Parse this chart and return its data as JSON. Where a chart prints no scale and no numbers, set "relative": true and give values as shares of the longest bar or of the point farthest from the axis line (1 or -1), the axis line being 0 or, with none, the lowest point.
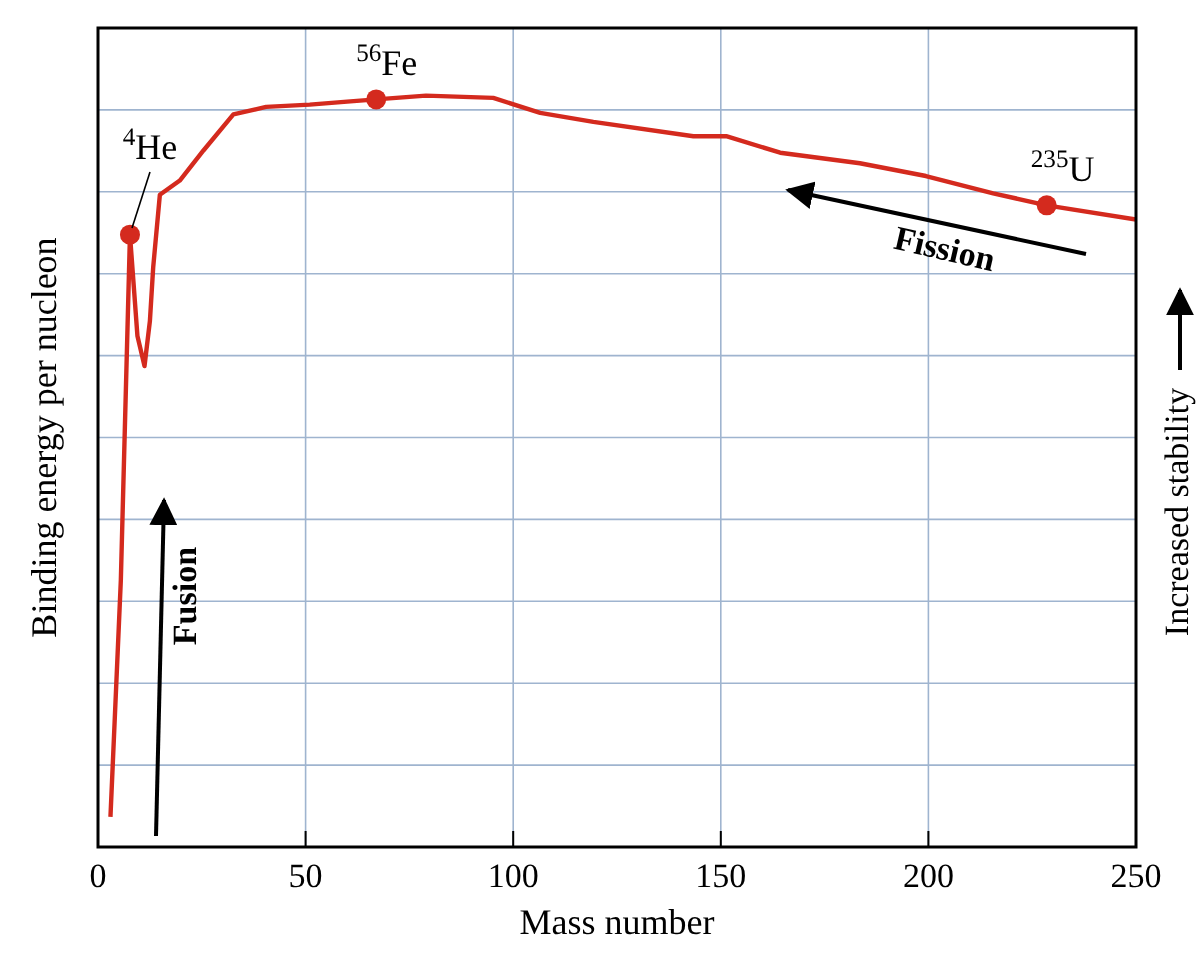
{
  "chart_data": {
    "type": "line",
    "relative": true,
    "xlabel": "Mass number",
    "ylabel": "Binding energy per nucleon",
    "xlim": [
      0,
      250
    ],
    "xticks": [
      0,
      50,
      100,
      150,
      200,
      250
    ],
    "grid": true,
    "marker": "none",
    "line_style": "solid",
    "x": [
      3,
      5.5,
      7.7,
      9.5,
      11.2,
      12.5,
      13.3,
      14.9,
      19.7,
      25.4,
      32.6,
      40.5,
      51,
      60,
      67,
      79,
      95.2,
      106.5,
      119.3,
      143.4,
      151.3,
      164.3,
      183.5,
      199.4,
      215.6,
      228.5,
      250
    ],
    "series": [
      {
        "color": "#d42a1e",
        "values": [
          0.04,
          0.355,
          0.815,
          0.68,
          0.64,
          0.7,
          0.772,
          0.868,
          0.887,
          0.927,
          0.975,
          0.985,
          0.988,
          0.992,
          0.995,
          1,
          0.997,
          0.977,
          0.965,
          0.946,
          0.946,
          0.924,
          0.91,
          0.893,
          0.87,
          0.854,
          0.835
        ]
      }
    ],
    "annotations": [
      {
        "text": "$^{4}$He",
        "x": 7.7,
        "y": 0.815
      },
      {
        "text": "$^{56}$Fe",
        "x": 67,
        "y": 0.995
      },
      {
        "text": "$^{235}$U",
        "x": 228.5,
        "y": 0.854
      },
      "Fusion",
      "Fission",
      "Increased stability"
    ]
  }
}
